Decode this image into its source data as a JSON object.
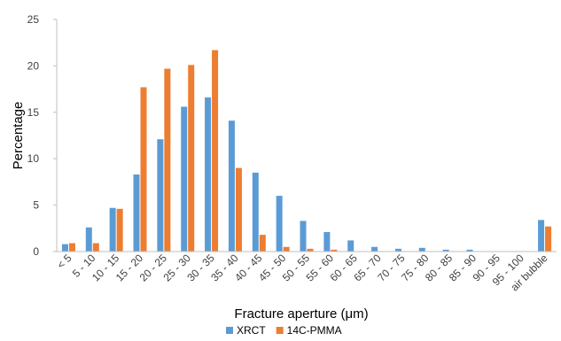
{
  "chart_data": {
    "type": "bar",
    "title": "",
    "xlabel": "Fracture aperture (μm)",
    "ylabel": "Percentage",
    "ylim": [
      0,
      25
    ],
    "yticks": [
      0,
      5,
      10,
      15,
      20,
      25
    ],
    "grid": false,
    "legend_position": "bottom",
    "categories": [
      "< 5",
      "5 - 10",
      "10 - 15",
      "15 - 20",
      "20 - 25",
      "25 - 30",
      "30 - 35",
      "35 - 40",
      "40 - 45",
      "45 - 50",
      "50 - 55",
      "55 - 60",
      "60 - 65",
      "65 - 70",
      "70 - 75",
      "75 - 80",
      "80 - 85",
      "85 - 90",
      "90 - 95",
      "95 - 100",
      "air bubble"
    ],
    "series": [
      {
        "name": "XRCT",
        "color": "#5B9BD5",
        "values": [
          0.8,
          2.6,
          4.7,
          8.3,
          12.1,
          15.6,
          16.6,
          14.1,
          8.5,
          6.0,
          3.3,
          2.1,
          1.2,
          0.5,
          0.3,
          0.4,
          0.2,
          0.2,
          0.0,
          0.0,
          3.4
        ]
      },
      {
        "name": "14C-PMMA",
        "color": "#ED7D31",
        "values": [
          0.9,
          0.9,
          4.6,
          17.7,
          19.7,
          20.1,
          21.7,
          9.0,
          1.8,
          0.5,
          0.3,
          0.2,
          0.0,
          0.0,
          0.0,
          0.0,
          0.0,
          0.0,
          0.0,
          0.0,
          2.7
        ]
      }
    ]
  }
}
